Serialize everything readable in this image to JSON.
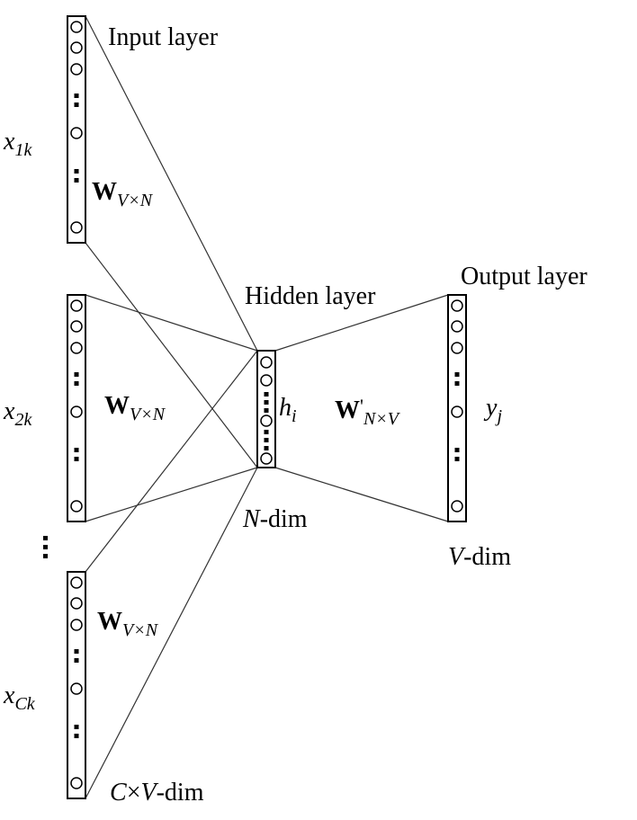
{
  "labels": {
    "input_layer": "Input layer",
    "hidden_layer": "Hidden layer",
    "output_layer": "Output layer",
    "x1k_base": "x",
    "x1k_sub": "1k",
    "x2k_base": "x",
    "x2k_sub": "2k",
    "xck_base": "x",
    "xck_sub": "Ck",
    "w_base": "W",
    "w_sub": "V×N",
    "wprime_base": "W",
    "wprime_prime": "'",
    "wprime_sub": "N×V",
    "h_base": "h",
    "h_sub": "i",
    "y_base": "y",
    "y_sub": "j",
    "n_dim_var": "N",
    "n_dim_rest": "-dim",
    "v_dim_var": "V",
    "v_dim_rest": "-dim",
    "cv_dim_var1": "C",
    "cv_dim_times": "×",
    "cv_dim_var2": "V",
    "cv_dim_rest": "-dim"
  }
}
